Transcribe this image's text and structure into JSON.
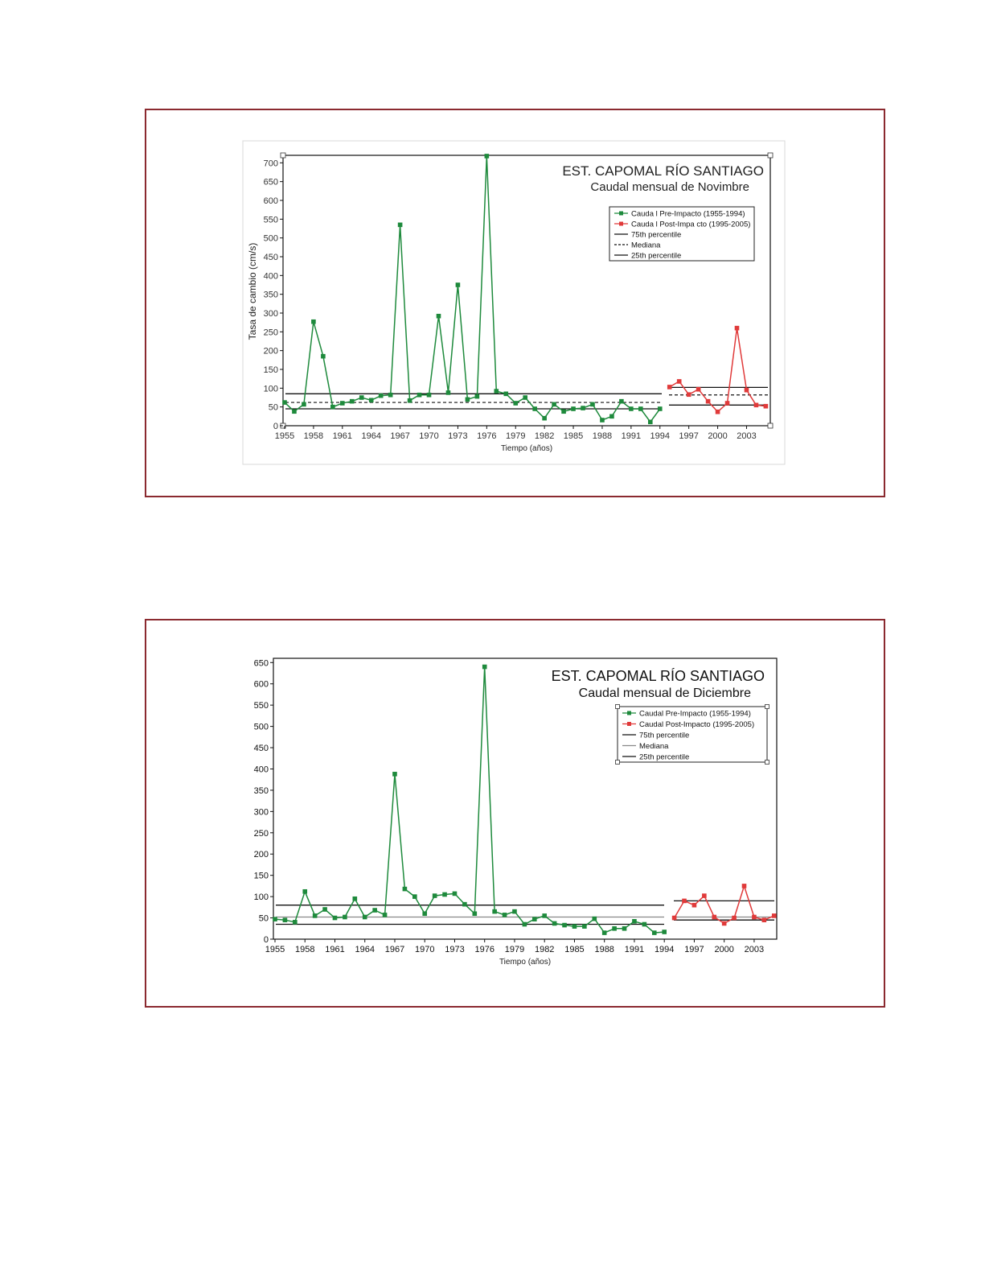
{
  "colors": {
    "pre": "#1e8a3c",
    "post": "#e03a3a",
    "frame": "#8b2a30",
    "line": "#111111"
  },
  "chart_data": [
    {
      "type": "line",
      "title": "EST. CAPOMAL RÍO SANTIAGO",
      "subtitle": "Caudal mensual de Novimbre",
      "xlabel": "Tiempo (años)",
      "ylabel": "Tasa de cambio (cm/s)",
      "ylim": [
        0,
        720
      ],
      "yticks": [
        0,
        50,
        100,
        150,
        200,
        250,
        300,
        350,
        400,
        450,
        500,
        550,
        600,
        650,
        700
      ],
      "xticks": [
        "1955",
        "1958",
        "1961",
        "1964",
        "1967",
        "1970",
        "1973",
        "1976",
        "1979",
        "1982",
        "1985",
        "1988",
        "1991",
        "1994",
        "1997",
        "2000",
        "2003"
      ],
      "legend_position": "top-right",
      "grid": false,
      "legend": [
        "Cauda l Pre-Impacto (1955-1994)",
        "Cauda l Post-Impa cto (1995-2005)",
        "75th percentile",
        "Mediana",
        "25th percentile"
      ],
      "series": [
        {
          "name": "Cauda l Pre-Impacto (1955-1994)",
          "x": [
            1955,
            1956,
            1957,
            1958,
            1959,
            1960,
            1961,
            1962,
            1963,
            1964,
            1965,
            1966,
            1967,
            1968,
            1969,
            1970,
            1971,
            1972,
            1973,
            1974,
            1975,
            1976,
            1977,
            1978,
            1979,
            1980,
            1981,
            1982,
            1983,
            1984,
            1985,
            1986,
            1987,
            1988,
            1989,
            1990,
            1991,
            1992,
            1993,
            1994
          ],
          "y": [
            62,
            38,
            57,
            277,
            185,
            50,
            60,
            65,
            75,
            68,
            80,
            82,
            535,
            67,
            82,
            82,
            292,
            88,
            375,
            70,
            78,
            718,
            92,
            85,
            60,
            75,
            45,
            20,
            57,
            38,
            45,
            47,
            57,
            15,
            25,
            65,
            45,
            45,
            10,
            45
          ]
        },
        {
          "name": "Cauda l Post-Impa cto (1995-2005)",
          "x": [
            1995,
            1996,
            1997,
            1998,
            1999,
            2000,
            2001,
            2002,
            2003,
            2004,
            2005
          ],
          "y": [
            103,
            118,
            83,
            97,
            65,
            37,
            60,
            260,
            95,
            55,
            52
          ]
        }
      ],
      "reference_lines": {
        "pre": {
          "p75": 85,
          "median": 62,
          "p25": 45
        },
        "post": {
          "p75": 102,
          "median": 82,
          "p25": 55
        }
      }
    },
    {
      "type": "line",
      "title": "EST. CAPOMAL RÍO SANTIAGO",
      "subtitle": "Caudal mensual de Diciembre",
      "xlabel": "Tiempo (años)",
      "ylabel": "",
      "ylim": [
        0,
        660
      ],
      "yticks": [
        0,
        50,
        100,
        150,
        200,
        250,
        300,
        350,
        400,
        450,
        500,
        550,
        600,
        650
      ],
      "xticks": [
        "1955",
        "1958",
        "1961",
        "1964",
        "1967",
        "1970",
        "1973",
        "1976",
        "1979",
        "1982",
        "1985",
        "1988",
        "1991",
        "1994",
        "1997",
        "2000",
        "2003"
      ],
      "legend_position": "top-right",
      "grid": false,
      "legend": [
        "Caudal Pre-Impacto (1955-1994)",
        "Caudal Post-Impacto (1995-2005)",
        "75th percentile",
        "Mediana",
        "25th percentile"
      ],
      "series": [
        {
          "name": "Caudal Pre-Impacto (1955-1994)",
          "x": [
            1955,
            1956,
            1957,
            1958,
            1959,
            1960,
            1961,
            1962,
            1963,
            1964,
            1965,
            1966,
            1967,
            1968,
            1969,
            1970,
            1971,
            1972,
            1973,
            1974,
            1975,
            1976,
            1977,
            1978,
            1979,
            1980,
            1981,
            1982,
            1983,
            1984,
            1985,
            1986,
            1987,
            1988,
            1989,
            1990,
            1991,
            1992,
            1993,
            1994
          ],
          "y": [
            47,
            45,
            40,
            112,
            55,
            70,
            50,
            52,
            95,
            52,
            68,
            57,
            388,
            118,
            100,
            60,
            102,
            105,
            107,
            82,
            60,
            640,
            65,
            57,
            65,
            35,
            47,
            55,
            37,
            33,
            30,
            30,
            48,
            15,
            25,
            25,
            42,
            35,
            15,
            17
          ]
        },
        {
          "name": "Caudal Post-Impacto (1995-2005)",
          "x": [
            1995,
            1996,
            1997,
            1998,
            1999,
            2000,
            2001,
            2002,
            2003,
            2004,
            2005
          ],
          "y": [
            50,
            90,
            80,
            102,
            52,
            37,
            50,
            125,
            52,
            45,
            55
          ]
        }
      ],
      "reference_lines": {
        "pre": {
          "p75": 80,
          "median": 52,
          "p25": 35
        },
        "post": {
          "p75": 90,
          "median": 52,
          "p25": 45
        }
      }
    }
  ]
}
